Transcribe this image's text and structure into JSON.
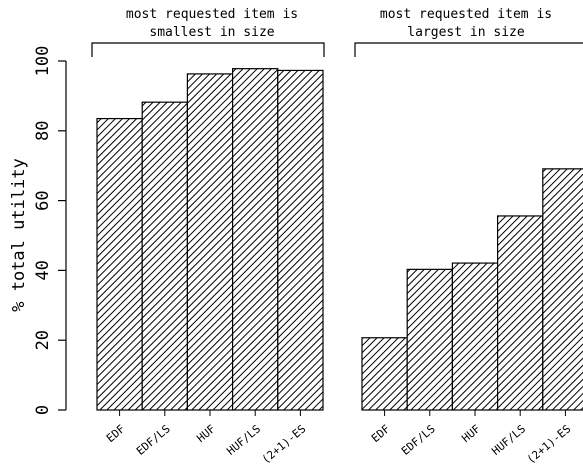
{
  "chart_data": {
    "type": "bar",
    "ylabel": "% total utility",
    "ylim": [
      0,
      100
    ],
    "yticks": [
      0,
      20,
      40,
      60,
      80,
      100
    ],
    "hatch": "diagonal",
    "bar_color": "#000000",
    "groups": [
      {
        "title_lines": [
          "most requested item is",
          "smallest in size"
        ],
        "categories": [
          "EDF",
          "EDF/LS",
          "HUF",
          "HUF/LS",
          "(2+1)-ES"
        ],
        "values": [
          83.5,
          88.2,
          96.3,
          97.8,
          97.3
        ]
      },
      {
        "title_lines": [
          "most requested item is",
          "largest in size"
        ],
        "categories": [
          "EDF",
          "EDF/LS",
          "HUF",
          "HUF/LS",
          "(2+1)-ES"
        ],
        "values": [
          20.7,
          40.3,
          42.1,
          55.6,
          69.1
        ]
      }
    ]
  }
}
